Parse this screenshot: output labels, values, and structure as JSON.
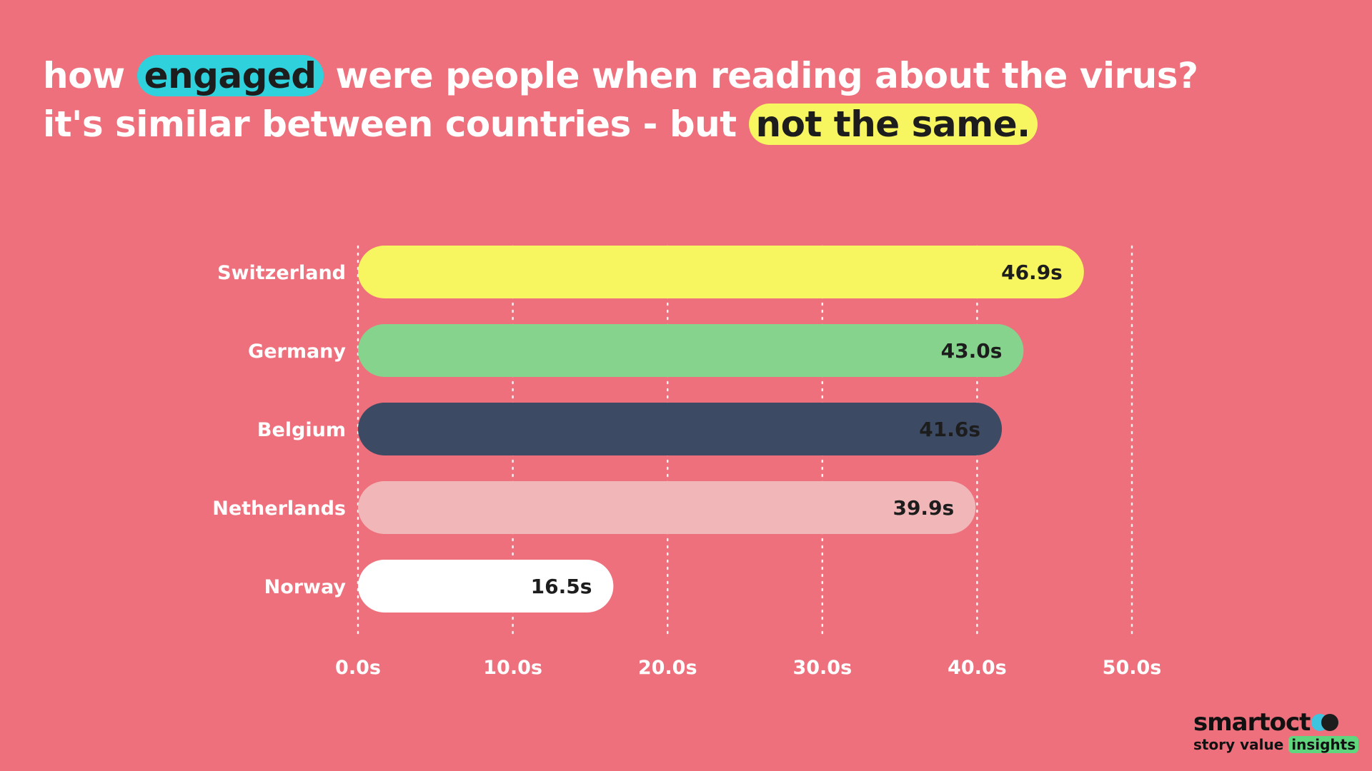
{
  "headline": {
    "line1_before": "how",
    "line1_highlight": "engaged",
    "line1_after": "were people when reading about the virus?",
    "line2_before": "it's similar between countries - but",
    "line2_highlight": "not the same."
  },
  "chart_data": {
    "type": "bar",
    "orientation": "horizontal",
    "categories": [
      "Switzerland",
      "Germany",
      "Belgium",
      "Netherlands",
      "Norway"
    ],
    "values": [
      46.9,
      43.0,
      41.6,
      39.9,
      16.5
    ],
    "value_labels": [
      "46.9s",
      "43.0s",
      "41.6s",
      "39.9s",
      "16.5s"
    ],
    "bar_colors": [
      "#f7f560",
      "#86d38d",
      "#3d4a63",
      "#f1b7b8",
      "#ffffff"
    ],
    "label_colors": [
      "#1d1d1d",
      "#1d1d1d",
      "#1d1d1d",
      "#1d1d1d",
      "#1d1d1d"
    ],
    "xlim": [
      0,
      50
    ],
    "x_ticks": [
      0,
      10,
      20,
      30,
      40,
      50
    ],
    "x_tick_labels": [
      "0.0s",
      "10.0s",
      "20.0s",
      "30.0s",
      "40.0s",
      "50.0s"
    ],
    "grid": true,
    "grid_style": "dotted"
  },
  "logo": {
    "word": "smart",
    "word_suffix": "oct",
    "tagline": "story value",
    "tagline_highlight": "insights"
  },
  "colors": {
    "background": "#ee707c",
    "text": "#ffffff",
    "highlight_cyan": "#2ed1dc",
    "highlight_yellow": "#f7f560"
  }
}
